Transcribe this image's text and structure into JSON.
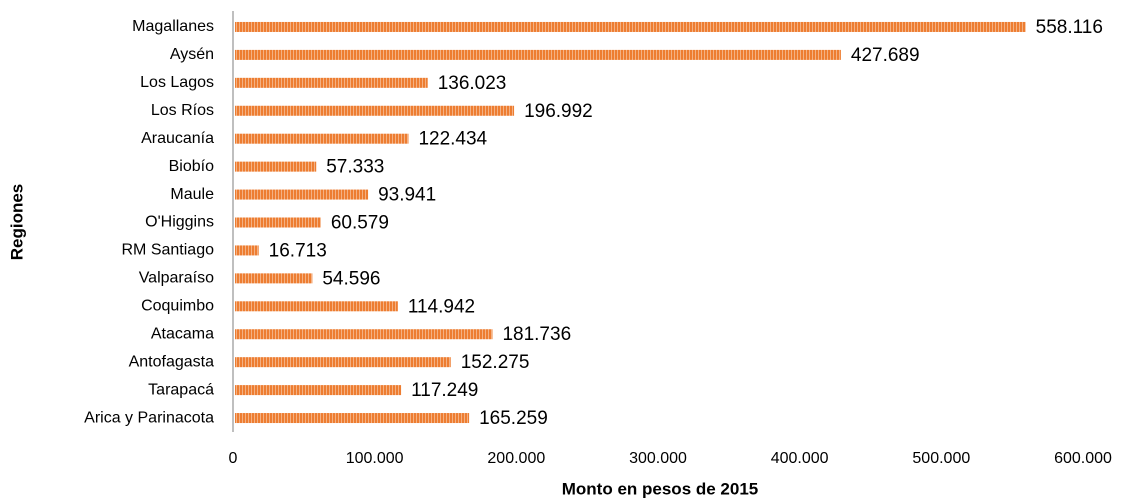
{
  "chart_data": {
    "type": "bar",
    "orientation": "horizontal",
    "x_label": "Monto en pesos de 2015",
    "y_label": "Regiones",
    "categories": [
      "Magallanes",
      "Aysén",
      "Los Lagos",
      "Los Ríos",
      "Araucanía",
      "Biobío",
      "Maule",
      "O'Higgins",
      "RM Santiago",
      "Valparaíso",
      "Coquimbo",
      "Atacama",
      "Antofagasta",
      "Tarapacá",
      "Arica y Parinacota"
    ],
    "values": [
      558116,
      427689,
      136023,
      196992,
      122434,
      57333,
      93941,
      60579,
      16713,
      54596,
      114942,
      181736,
      152275,
      117249,
      165259
    ],
    "value_labels": [
      "558.116",
      "427.689",
      "136.023",
      "196.992",
      "122.434",
      "57.333",
      "93.941",
      "60.579",
      "16.713",
      "54.596",
      "114.942",
      "181.736",
      "152.275",
      "117.249",
      "165.259"
    ],
    "color": "#ed7d31",
    "xlim": [
      0,
      600000
    ],
    "xticks": [
      0,
      {
        "value": 100000,
        "label": "100.000"
      },
      {
        "value": 200000,
        "label": "200.000"
      },
      {
        "value": 300000,
        "label": "300.000"
      },
      {
        "value": 400000,
        "label": "400.000"
      },
      {
        "value": 500000,
        "label": "500.000"
      },
      {
        "value": 600000,
        "label": "600.000"
      }
    ],
    "grid": false
  }
}
